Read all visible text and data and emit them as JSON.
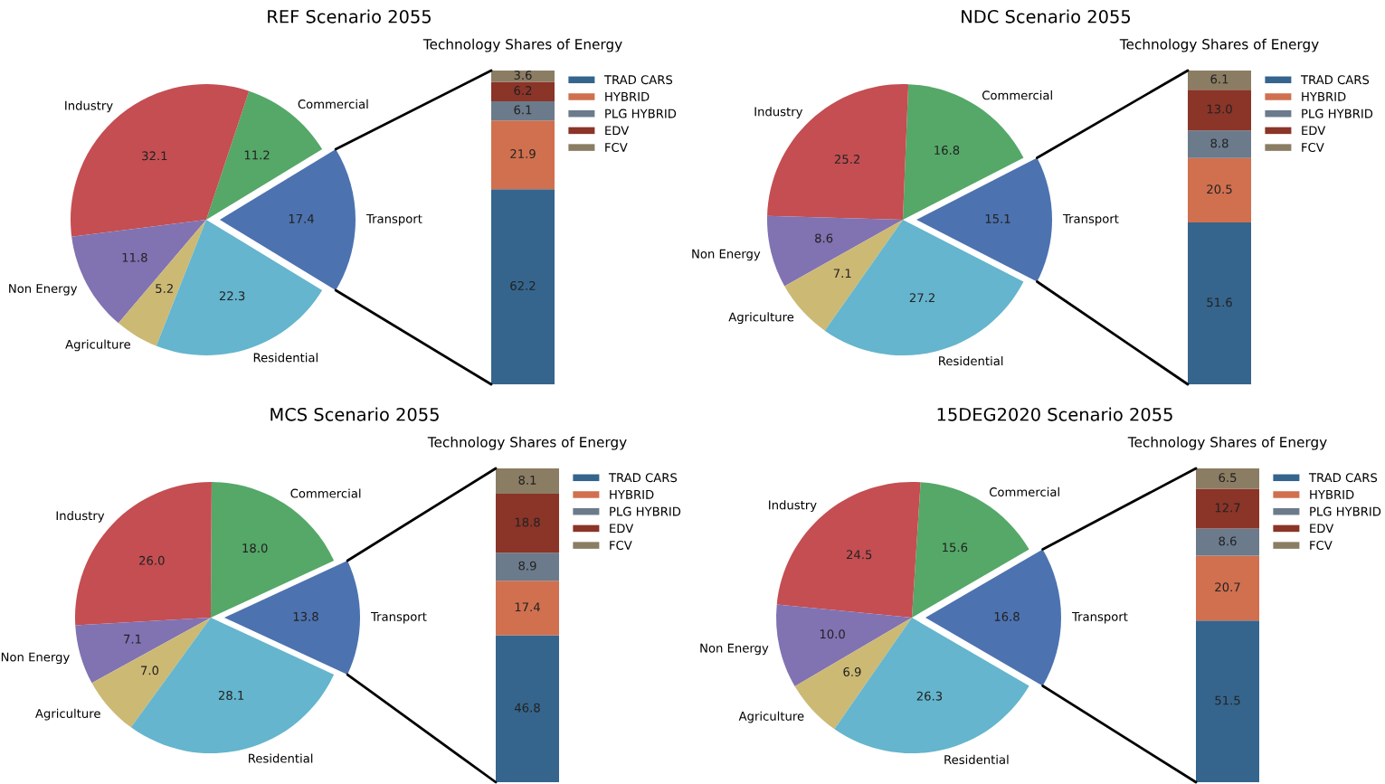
{
  "chart_data": [
    {
      "type": "pie",
      "title": "REF Scenario 2055",
      "categories": [
        "Transport",
        "Commercial",
        "Industry",
        "Non Energy",
        "Agriculture",
        "Residential"
      ],
      "values": [
        17.4,
        11.2,
        32.1,
        11.8,
        5.2,
        22.3
      ],
      "colors": [
        "#4c72b0",
        "#55a868",
        "#c44e52",
        "#8172b2",
        "#ccb974",
        "#64b5cd"
      ],
      "data_labels": true
    },
    {
      "type": "bar",
      "title": "Technology Shares of Energy",
      "stacked": true,
      "categories": [
        null
      ],
      "legend": "right",
      "data_labels": true,
      "series": [
        {
          "name": "TRAD CARS",
          "color": "#35658d",
          "values": [
            62.2
          ]
        },
        {
          "name": "HYBRID",
          "color": "#d0704f",
          "values": [
            21.9
          ]
        },
        {
          "name": "PLG HYBRID",
          "color": "#6b7b8c",
          "values": [
            6.1
          ]
        },
        {
          "name": "EDV",
          "color": "#8b3428",
          "values": [
            6.2
          ]
        },
        {
          "name": "FCV",
          "color": "#8b7d63",
          "values": [
            3.6
          ]
        }
      ]
    },
    {
      "type": "pie",
      "title": "NDC Scenario 2055",
      "categories": [
        "Transport",
        "Commercial",
        "Industry",
        "Non Energy",
        "Agriculture",
        "Residential"
      ],
      "values": [
        15.1,
        16.8,
        25.2,
        8.6,
        7.1,
        27.2
      ],
      "colors": [
        "#4c72b0",
        "#55a868",
        "#c44e52",
        "#8172b2",
        "#ccb974",
        "#64b5cd"
      ],
      "data_labels": true
    },
    {
      "type": "bar",
      "title": "Technology Shares of Energy",
      "stacked": true,
      "categories": [
        null
      ],
      "legend": "right",
      "data_labels": true,
      "series": [
        {
          "name": "TRAD CARS",
          "color": "#35658d",
          "values": [
            51.6
          ]
        },
        {
          "name": "HYBRID",
          "color": "#d0704f",
          "values": [
            20.5
          ]
        },
        {
          "name": "PLG HYBRID",
          "color": "#6b7b8c",
          "values": [
            8.8
          ]
        },
        {
          "name": "EDV",
          "color": "#8b3428",
          "values": [
            13.0
          ],
          "value_labels": [
            "13.0"
          ]
        },
        {
          "name": "FCV",
          "color": "#8b7d63",
          "values": [
            6.1
          ]
        }
      ]
    },
    {
      "type": "pie",
      "title": "MCS Scenario 2055",
      "categories": [
        "Transport",
        "Commercial",
        "Industry",
        "Non Energy",
        "Agriculture",
        "Residential"
      ],
      "values": [
        13.8,
        18.0,
        26.0,
        7.1,
        7.0,
        28.1
      ],
      "colors": [
        "#4c72b0",
        "#55a868",
        "#c44e52",
        "#8172b2",
        "#ccb974",
        "#64b5cd"
      ],
      "value_labels": [
        "13.8",
        "18.0",
        "26.0",
        "7.1",
        "7.0",
        "28.1"
      ]
    },
    {
      "type": "bar",
      "title": "Technology Shares of Energy",
      "stacked": true,
      "categories": [
        null
      ],
      "legend": "right",
      "data_labels": true,
      "series": [
        {
          "name": "TRAD CARS",
          "color": "#35658d",
          "values": [
            46.8
          ]
        },
        {
          "name": "HYBRID",
          "color": "#d0704f",
          "values": [
            17.4
          ]
        },
        {
          "name": "PLG HYBRID",
          "color": "#6b7b8c",
          "values": [
            8.9
          ]
        },
        {
          "name": "EDV",
          "color": "#8b3428",
          "values": [
            18.8
          ]
        },
        {
          "name": "FCV",
          "color": "#8b7d63",
          "values": [
            8.1
          ]
        }
      ]
    },
    {
      "type": "pie",
      "title": "15DEG2020 Scenario 2055",
      "categories": [
        "Transport",
        "Commercial",
        "Industry",
        "Non Energy",
        "Agriculture",
        "Residential"
      ],
      "values": [
        16.8,
        15.6,
        24.5,
        10.0,
        6.9,
        26.3
      ],
      "colors": [
        "#4c72b0",
        "#55a868",
        "#c44e52",
        "#8172b2",
        "#ccb974",
        "#64b5cd"
      ],
      "value_labels": [
        "16.8",
        "15.6",
        "24.5",
        "10.0",
        "6.9",
        "26.3"
      ]
    },
    {
      "type": "bar",
      "title": "Technology Shares of Energy",
      "stacked": true,
      "categories": [
        null
      ],
      "legend": "right",
      "data_labels": true,
      "series": [
        {
          "name": "TRAD CARS",
          "color": "#35658d",
          "values": [
            51.5
          ]
        },
        {
          "name": "HYBRID",
          "color": "#d0704f",
          "values": [
            20.7
          ]
        },
        {
          "name": "PLG HYBRID",
          "color": "#6b7b8c",
          "values": [
            8.6
          ]
        },
        {
          "name": "EDV",
          "color": "#8b3428",
          "values": [
            12.7
          ]
        },
        {
          "name": "FCV",
          "color": "#8b7d63",
          "values": [
            6.5
          ]
        }
      ]
    }
  ]
}
